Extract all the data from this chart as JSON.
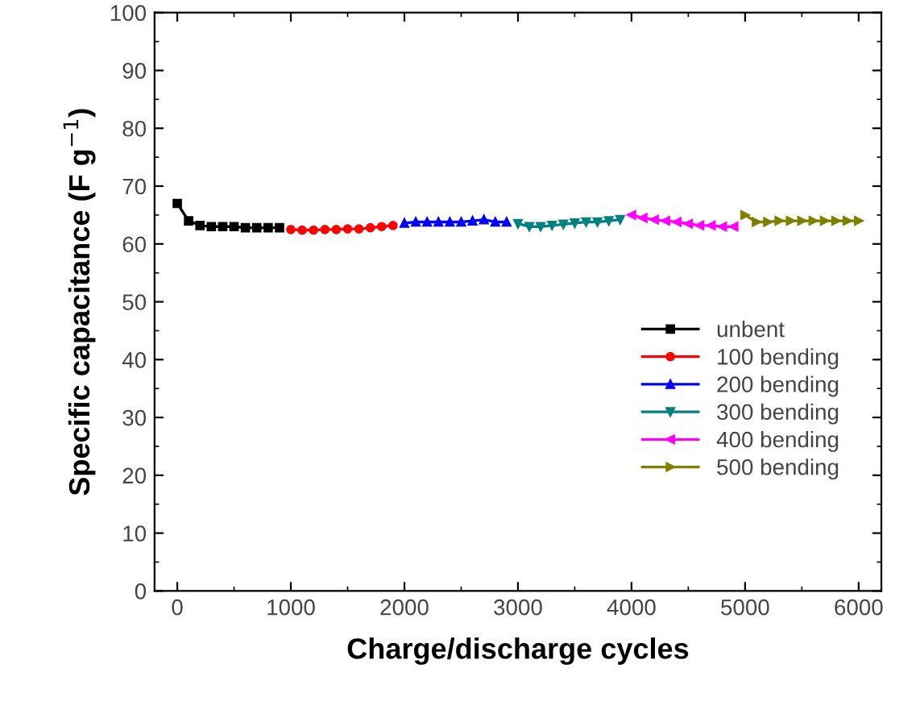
{
  "chart_data": {
    "type": "line",
    "xlabel": "Charge/discharge cycles",
    "ylabel": "Specific capacitance (F g$^{−1}$)",
    "xlim": [
      -200,
      6200
    ],
    "xticks": [
      0,
      1000,
      2000,
      3000,
      4000,
      5000,
      6000
    ],
    "ylim": [
      0,
      100
    ],
    "yticks": [
      0,
      10,
      20,
      30,
      40,
      50,
      60,
      70,
      80,
      90,
      100
    ],
    "grid": false,
    "legend": "right",
    "series": [
      {
        "name": "unbent",
        "color": "#000000",
        "marker": "square",
        "x": [
          0,
          100,
          200,
          300,
          400,
          500,
          600,
          700,
          800,
          900
        ],
        "values": [
          67,
          64,
          63.2,
          63,
          63,
          63,
          62.8,
          62.8,
          62.8,
          62.8
        ]
      },
      {
        "name": "100 bending",
        "color": "#ff0000",
        "marker": "circle",
        "x": [
          1000,
          1100,
          1200,
          1300,
          1400,
          1500,
          1600,
          1700,
          1800,
          1900
        ],
        "values": [
          62.5,
          62.4,
          62.4,
          62.5,
          62.5,
          62.6,
          62.6,
          62.8,
          63,
          63.2
        ]
      },
      {
        "name": "200 bending",
        "color": "#0000ff",
        "marker": "triangle",
        "x": [
          2000,
          2100,
          2200,
          2300,
          2400,
          2500,
          2600,
          2700,
          2800,
          2900
        ],
        "values": [
          63.6,
          63.8,
          63.8,
          63.8,
          63.8,
          63.8,
          64,
          64.2,
          63.8,
          63.8
        ]
      },
      {
        "name": "300 bending",
        "color": "#008080",
        "marker": "triangle_down",
        "x": [
          3000,
          3100,
          3200,
          3300,
          3400,
          3500,
          3600,
          3700,
          3800,
          3900
        ],
        "values": [
          63.5,
          63,
          63,
          63.2,
          63.4,
          63.6,
          63.8,
          63.8,
          64,
          64.2
        ]
      },
      {
        "name": "400 bending",
        "color": "#ff00ff",
        "marker": "triangle_left",
        "x": [
          4000,
          4100,
          4200,
          4300,
          4400,
          4500,
          4600,
          4700,
          4800,
          4900
        ],
        "values": [
          65,
          64.5,
          64.2,
          64,
          63.8,
          63.5,
          63.2,
          63.2,
          63,
          63
        ]
      },
      {
        "name": "500 bending",
        "color": "#808000",
        "marker": "triangle_right",
        "x": [
          5000,
          5100,
          5200,
          5300,
          5400,
          5500,
          5600,
          5700,
          5800,
          5900,
          6000
        ],
        "values": [
          65,
          63.8,
          63.8,
          64,
          64,
          64,
          64,
          64,
          64,
          64,
          64
        ]
      }
    ]
  }
}
